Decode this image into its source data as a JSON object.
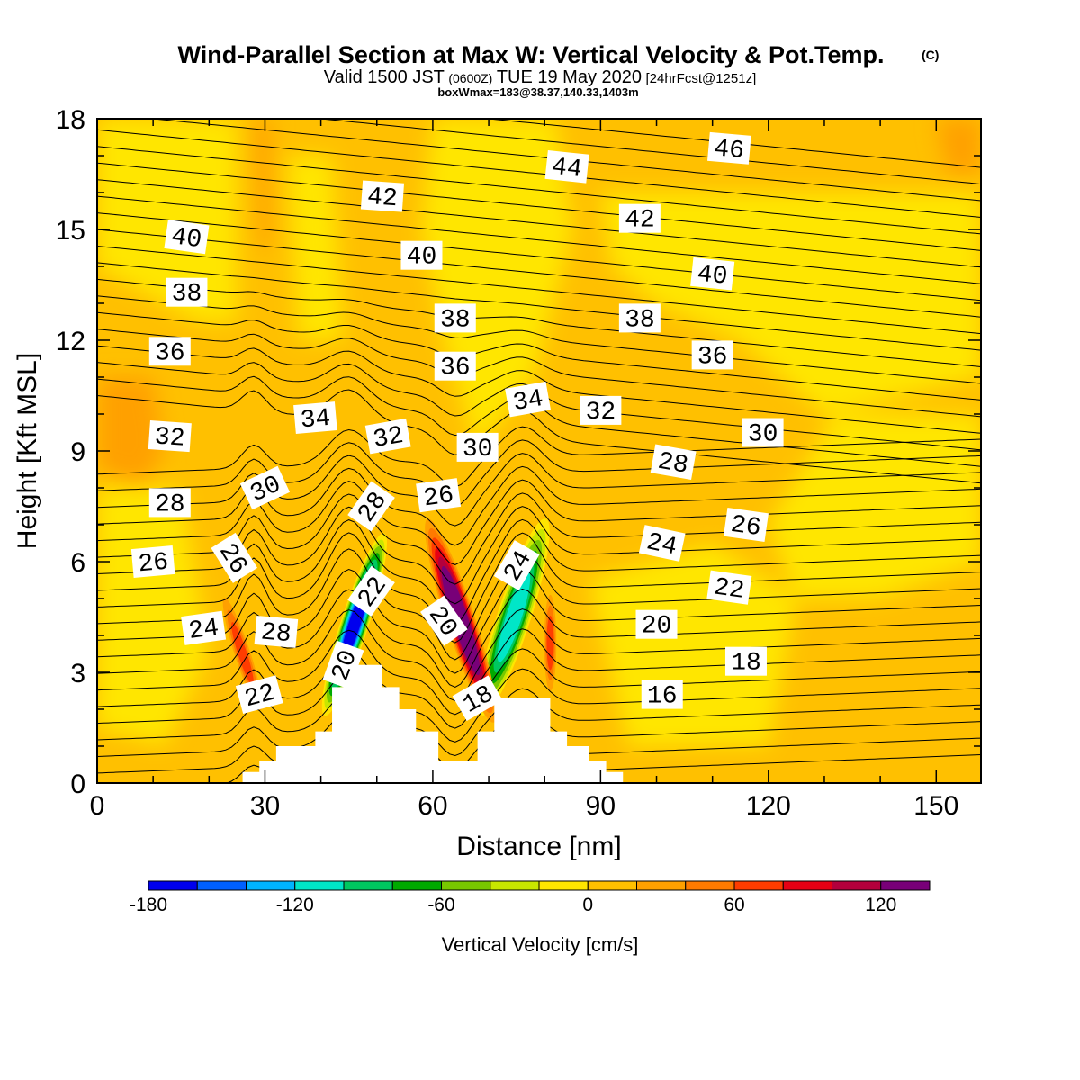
{
  "title": "Wind-Parallel Section at Max W: Vertical Velocity & Pot.Temp.",
  "copyright_mark": "(C)",
  "subtitle": {
    "prefix": "Valid 1500 JST",
    "utc": "(0600Z)",
    "date": "TUE 19 May 2020",
    "forecast": "[24hrFcst@1251z]"
  },
  "info_line": "boxWmax=183@38.37,140.33,1403m",
  "colors": {
    "field_base": "#ffc000",
    "light_yellow": "#ffe600",
    "orange": "#ffa000",
    "dark_orange": "#ff7a00",
    "terrain": "#ffffff",
    "contour": "#000000"
  },
  "chart_data": {
    "type": "heatmap",
    "overlay": "contour",
    "xlabel": "Distance [nm]",
    "ylabel": "Height [Kft MSL]",
    "xlim": [
      0,
      158
    ],
    "ylim": [
      0,
      18
    ],
    "x_ticks": [
      "0",
      "30",
      "60",
      "90",
      "120",
      "150"
    ],
    "x_tick_values": [
      0,
      30,
      60,
      90,
      120,
      150
    ],
    "y_ticks": [
      "0",
      "3",
      "6",
      "9",
      "12",
      "15",
      "18"
    ],
    "y_tick_values": [
      0,
      3,
      6,
      9,
      12,
      15,
      18
    ],
    "colorbar": {
      "label": "Vertical Velocity [cm/s]",
      "range": [
        -180,
        140
      ],
      "step": 20,
      "tick_labels": [
        "-180",
        "-120",
        "-60",
        "0",
        "60",
        "120"
      ],
      "tick_values": [
        -180,
        -120,
        -60,
        0,
        60,
        120
      ],
      "colors": [
        "#0000ee",
        "#0060ff",
        "#00b4ff",
        "#00e6c8",
        "#00c860",
        "#00aa00",
        "#78c800",
        "#c8e600",
        "#ffe600",
        "#ffc000",
        "#ffa000",
        "#ff7a00",
        "#ff3c00",
        "#e60014",
        "#b4003c",
        "#780078"
      ]
    },
    "terrain_profile": [
      [
        26,
        0
      ],
      [
        26,
        0.3
      ],
      [
        29,
        0.3
      ],
      [
        29,
        0.6
      ],
      [
        32,
        0.6
      ],
      [
        32,
        1.0
      ],
      [
        39,
        1.0
      ],
      [
        39,
        1.4
      ],
      [
        42,
        1.4
      ],
      [
        42,
        2.6
      ],
      [
        45,
        2.6
      ],
      [
        45,
        3.2
      ],
      [
        51,
        3.2
      ],
      [
        51,
        2.6
      ],
      [
        54,
        2.6
      ],
      [
        54,
        2.0
      ],
      [
        57,
        2.0
      ],
      [
        57,
        1.4
      ],
      [
        61,
        1.4
      ],
      [
        61,
        0.6
      ],
      [
        68,
        0.6
      ],
      [
        68,
        1.4
      ],
      [
        71,
        1.4
      ],
      [
        71,
        2.3
      ],
      [
        81,
        2.3
      ],
      [
        81,
        1.4
      ],
      [
        84,
        1.4
      ],
      [
        84,
        1.0
      ],
      [
        88,
        1.0
      ],
      [
        88,
        0.6
      ],
      [
        91,
        0.6
      ],
      [
        91,
        0.3
      ],
      [
        94,
        0.3
      ],
      [
        94,
        0
      ]
    ],
    "velocity_features": [
      {
        "x": 46,
        "y": 4.3,
        "rx": 2.5,
        "ry": 2.6,
        "value": -180,
        "shape": "tilted-band"
      },
      {
        "x": 74.5,
        "y": 4.5,
        "rx": 3.0,
        "ry": 2.8,
        "value": -120,
        "shape": "tilted-band"
      },
      {
        "x": 65,
        "y": 4.4,
        "rx": 2.6,
        "ry": 2.9,
        "value": 140,
        "shape": "tilted-band"
      },
      {
        "x": 26,
        "y": 3.5,
        "rx": 1.4,
        "ry": 1.6,
        "value": 60,
        "shape": "tilted-band"
      },
      {
        "x": 81,
        "y": 3.8,
        "rx": 1.1,
        "ry": 1.3,
        "value": 60,
        "shape": "vertical"
      }
    ],
    "contour_labels": [
      {
        "text": "46",
        "x": 113,
        "y": 17.2,
        "angle": 5
      },
      {
        "text": "44",
        "x": 84,
        "y": 16.7,
        "angle": 6
      },
      {
        "text": "42",
        "x": 51,
        "y": 15.9,
        "angle": 4
      },
      {
        "text": "42",
        "x": 97,
        "y": 15.3,
        "angle": 0
      },
      {
        "text": "40",
        "x": 16,
        "y": 14.8,
        "angle": 8
      },
      {
        "text": "40",
        "x": 58,
        "y": 14.3,
        "angle": 0
      },
      {
        "text": "40",
        "x": 110,
        "y": 13.8,
        "angle": 6
      },
      {
        "text": "38",
        "x": 16,
        "y": 13.3,
        "angle": 0
      },
      {
        "text": "38",
        "x": 64,
        "y": 12.6,
        "angle": 0
      },
      {
        "text": "38",
        "x": 97,
        "y": 12.6,
        "angle": 0
      },
      {
        "text": "36",
        "x": 13,
        "y": 11.7,
        "angle": 0
      },
      {
        "text": "36",
        "x": 64,
        "y": 11.3,
        "angle": 0
      },
      {
        "text": "36",
        "x": 110,
        "y": 11.6,
        "angle": 0
      },
      {
        "text": "34",
        "x": 39,
        "y": 9.9,
        "angle": -5
      },
      {
        "text": "34",
        "x": 77,
        "y": 10.4,
        "angle": -10
      },
      {
        "text": "32",
        "x": 13,
        "y": 9.4,
        "angle": 4
      },
      {
        "text": "32",
        "x": 52,
        "y": 9.4,
        "angle": -10
      },
      {
        "text": "32",
        "x": 90,
        "y": 10.1,
        "angle": 0
      },
      {
        "text": "30",
        "x": 30,
        "y": 8.0,
        "angle": -25
      },
      {
        "text": "30",
        "x": 68,
        "y": 9.1,
        "angle": 0
      },
      {
        "text": "30",
        "x": 119,
        "y": 9.5,
        "angle": 0
      },
      {
        "text": "28",
        "x": 13,
        "y": 7.6,
        "angle": 0
      },
      {
        "text": "28",
        "x": 49,
        "y": 7.5,
        "angle": -55
      },
      {
        "text": "28",
        "x": 103,
        "y": 8.7,
        "angle": 10
      },
      {
        "text": "26",
        "x": 10,
        "y": 6.0,
        "angle": -5
      },
      {
        "text": "26",
        "x": 24.5,
        "y": 6.1,
        "angle": 58
      },
      {
        "text": "26",
        "x": 61,
        "y": 7.8,
        "angle": -8
      },
      {
        "text": "26",
        "x": 116,
        "y": 7.0,
        "angle": 8
      },
      {
        "text": "24",
        "x": 19,
        "y": 4.2,
        "angle": -8
      },
      {
        "text": "24",
        "x": 75,
        "y": 5.9,
        "angle": -60
      },
      {
        "text": "24",
        "x": 101,
        "y": 6.5,
        "angle": 12
      },
      {
        "text": "22",
        "x": 29,
        "y": 2.4,
        "angle": -15
      },
      {
        "text": "22",
        "x": 49,
        "y": 5.2,
        "angle": -55
      },
      {
        "text": "22",
        "x": 113,
        "y": 5.3,
        "angle": 8
      },
      {
        "text": "28",
        "x": 32,
        "y": 4.1,
        "angle": 5
      },
      {
        "text": "20",
        "x": 44,
        "y": 3.2,
        "angle": -70
      },
      {
        "text": "20",
        "x": 62,
        "y": 4.4,
        "angle": 55
      },
      {
        "text": "20",
        "x": 100,
        "y": 4.3,
        "angle": 0
      },
      {
        "text": "18",
        "x": 68,
        "y": 2.3,
        "angle": -30
      },
      {
        "text": "18",
        "x": 116,
        "y": 3.3,
        "angle": 0
      },
      {
        "text": "16",
        "x": 101,
        "y": 2.4,
        "angle": 0
      }
    ]
  }
}
